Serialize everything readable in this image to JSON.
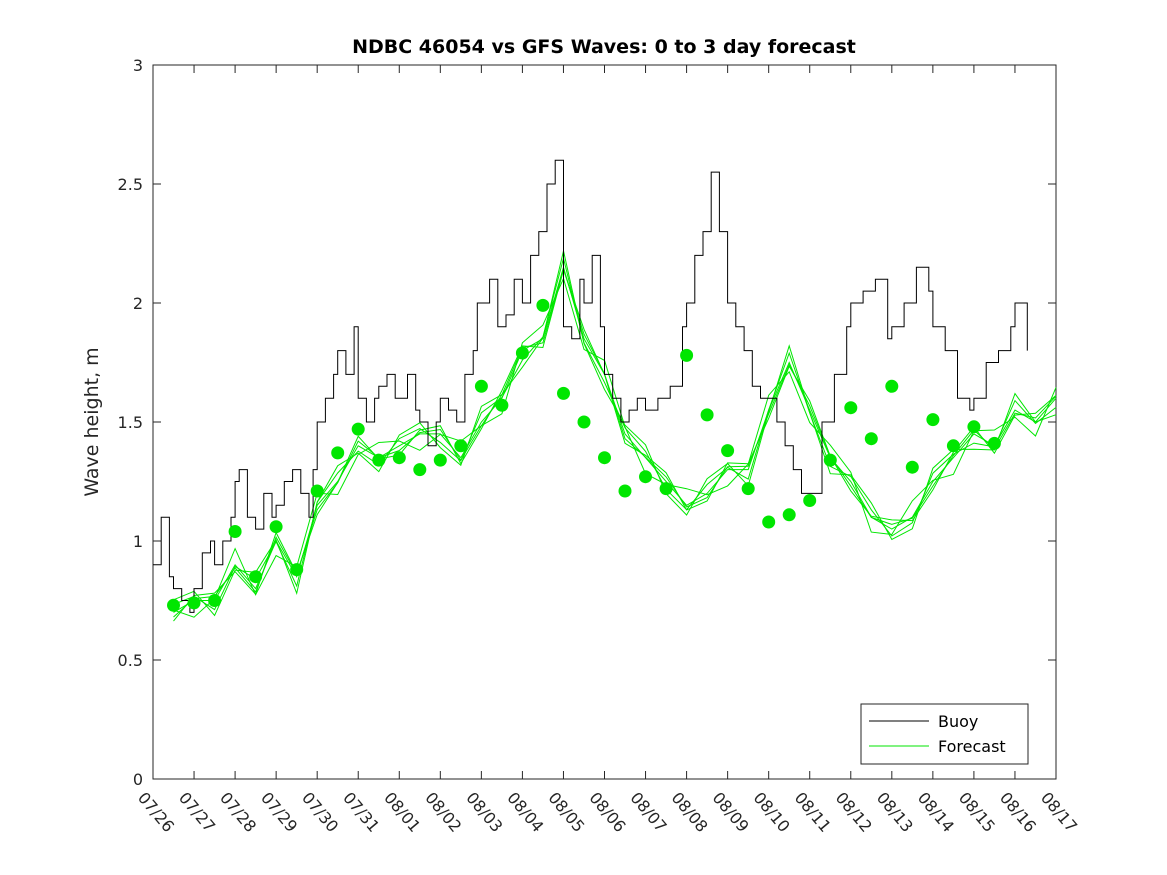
{
  "chart_data": {
    "type": "line",
    "title": "NDBC 46054 vs GFS Waves: 0 to 3 day forecast",
    "xlabel": "",
    "ylabel": "Wave height, m",
    "xlim_days": [
      0,
      22
    ],
    "ylim": [
      0,
      3
    ],
    "yticks": [
      0,
      0.5,
      1,
      1.5,
      2,
      2.5,
      3
    ],
    "ytick_labels": [
      "0",
      "0.5",
      "1",
      "1.5",
      "2",
      "2.5",
      "3"
    ],
    "xtick_labels": [
      "07/26",
      "07/27",
      "07/28",
      "07/29",
      "07/30",
      "07/31",
      "08/01",
      "08/02",
      "08/03",
      "08/04",
      "08/05",
      "08/06",
      "08/07",
      "08/08",
      "08/09",
      "08/10",
      "08/11",
      "08/12",
      "08/13",
      "08/14",
      "08/15",
      "08/16",
      "08/17"
    ],
    "legend": {
      "position": "bottom-right",
      "entries": [
        "Buoy",
        "Forecast"
      ]
    },
    "colors": {
      "buoy": "#000000",
      "forecast": "#00e600",
      "marker": "#00e600",
      "axis": "#262626"
    },
    "series": [
      {
        "name": "Buoy",
        "x_days": [
          0,
          0.2,
          0.4,
          0.5,
          0.7,
          0.9,
          1.0,
          1.2,
          1.4,
          1.5,
          1.7,
          1.9,
          2.0,
          2.1,
          2.3,
          2.5,
          2.7,
          2.9,
          3.0,
          3.2,
          3.4,
          3.6,
          3.8,
          3.9,
          4.0,
          4.2,
          4.4,
          4.5,
          4.7,
          4.9,
          5.0,
          5.2,
          5.4,
          5.5,
          5.7,
          5.9,
          6.0,
          6.2,
          6.4,
          6.5,
          6.7,
          6.9,
          7.0,
          7.2,
          7.4,
          7.6,
          7.8,
          7.9,
          8.0,
          8.2,
          8.4,
          8.6,
          8.8,
          9.0,
          9.2,
          9.4,
          9.6,
          9.8,
          10.0,
          10.2,
          10.4,
          10.5,
          10.7,
          10.9,
          11.0,
          11.2,
          11.4,
          11.6,
          11.8,
          12.0,
          12.3,
          12.6,
          12.9,
          13.0,
          13.2,
          13.4,
          13.6,
          13.8,
          14.0,
          14.2,
          14.4,
          14.6,
          14.8,
          15.0,
          15.2,
          15.4,
          15.6,
          15.8,
          16.0,
          16.3,
          16.6,
          16.9,
          17.0,
          17.3,
          17.6,
          17.9,
          18.0,
          18.3,
          18.6,
          18.9,
          19.0,
          19.3,
          19.6,
          19.9,
          20.0,
          20.3,
          20.6,
          20.9,
          21.0,
          21.3
        ],
        "values": [
          0.9,
          1.1,
          0.85,
          0.8,
          0.75,
          0.7,
          0.8,
          0.95,
          1.0,
          0.9,
          1.0,
          1.1,
          1.25,
          1.3,
          1.1,
          1.05,
          1.2,
          1.1,
          1.15,
          1.25,
          1.3,
          1.2,
          1.1,
          1.3,
          1.5,
          1.6,
          1.7,
          1.8,
          1.7,
          1.9,
          1.6,
          1.5,
          1.6,
          1.65,
          1.7,
          1.6,
          1.6,
          1.7,
          1.55,
          1.5,
          1.4,
          1.5,
          1.6,
          1.55,
          1.5,
          1.7,
          1.8,
          2.0,
          2.0,
          2.1,
          1.9,
          1.95,
          2.1,
          2.0,
          2.2,
          2.3,
          2.5,
          2.6,
          1.9,
          1.85,
          2.1,
          2.0,
          2.2,
          1.9,
          1.7,
          1.6,
          1.5,
          1.55,
          1.6,
          1.55,
          1.6,
          1.65,
          1.9,
          2.0,
          2.2,
          2.3,
          2.55,
          2.3,
          2.0,
          1.9,
          1.8,
          1.65,
          1.6,
          1.6,
          1.5,
          1.4,
          1.3,
          1.2,
          1.2,
          1.5,
          1.7,
          1.9,
          2.0,
          2.05,
          2.1,
          1.85,
          1.9,
          2.0,
          2.15,
          2.05,
          1.9,
          1.8,
          1.6,
          1.55,
          1.6,
          1.75,
          1.8,
          1.9,
          2.0,
          1.8
        ]
      },
      {
        "name": "Forecast",
        "x_days": [
          0.5,
          1.0,
          1.5,
          2.0,
          2.5,
          3.0,
          3.5,
          4.0,
          4.5,
          5.0,
          5.5,
          6.0,
          6.5,
          7.0,
          7.5,
          8.0,
          8.5,
          9.0,
          9.5,
          10.0,
          10.5,
          11.0,
          11.5,
          12.0,
          12.5,
          13.0,
          13.5,
          14.0,
          14.5,
          15.0,
          15.5,
          16.0,
          16.5,
          17.0,
          17.5,
          18.0,
          18.5,
          19.0,
          19.5,
          20.0,
          20.5,
          21.0,
          21.5,
          22.0
        ],
        "values": [
          0.7,
          0.75,
          0.75,
          0.9,
          0.8,
          1.0,
          0.85,
          1.15,
          1.25,
          1.4,
          1.35,
          1.4,
          1.45,
          1.45,
          1.35,
          1.5,
          1.6,
          1.8,
          1.85,
          2.15,
          1.85,
          1.7,
          1.45,
          1.35,
          1.25,
          1.15,
          1.2,
          1.3,
          1.3,
          1.55,
          1.75,
          1.55,
          1.35,
          1.25,
          1.1,
          1.05,
          1.1,
          1.25,
          1.35,
          1.45,
          1.4,
          1.55,
          1.5,
          1.6
        ]
      },
      {
        "name": "Forecast (daily 0 h markers)",
        "x_days": [
          0.5,
          1.0,
          1.5,
          2.0,
          2.5,
          3.0,
          3.5,
          4.0,
          4.5,
          5.0,
          5.5,
          6.0,
          6.5,
          7.0,
          7.5,
          8.0,
          8.5,
          9.0,
          9.5,
          10.0,
          10.5,
          11.0,
          11.5,
          12.0,
          12.5,
          13.0,
          13.5,
          14.0,
          14.5,
          15.0,
          15.5,
          16.0,
          16.5,
          17.0,
          17.5,
          18.0,
          18.5,
          19.0,
          19.5,
          20.0,
          20.5
        ],
        "values": [
          0.73,
          0.74,
          0.75,
          1.04,
          0.85,
          1.06,
          0.88,
          1.21,
          1.37,
          1.47,
          1.34,
          1.35,
          1.3,
          1.34,
          1.4,
          1.65,
          1.57,
          1.79,
          1.99,
          1.62,
          1.5,
          1.35,
          1.21,
          1.27,
          1.22,
          1.78,
          1.53,
          1.38,
          1.22,
          1.08,
          1.11,
          1.17,
          1.34,
          1.56,
          1.43,
          1.65,
          1.31,
          1.51,
          1.4,
          1.48,
          1.41
        ]
      }
    ]
  }
}
